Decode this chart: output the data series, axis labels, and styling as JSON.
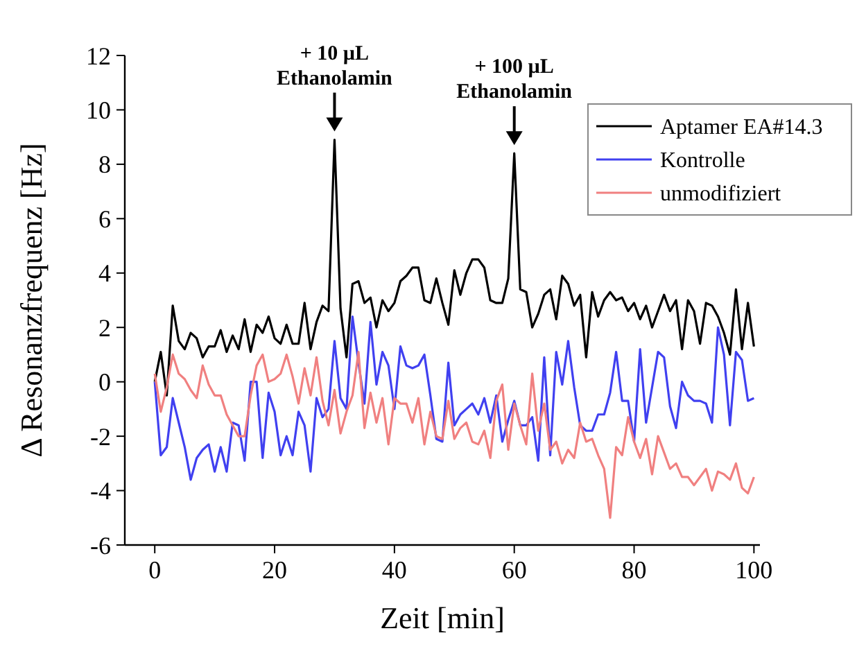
{
  "chart_data": {
    "type": "line",
    "xlabel": "Zeit [min]",
    "ylabel": "Δ Resonanzfrequenz [Hz]",
    "x": [
      0,
      1,
      2,
      3,
      4,
      5,
      6,
      7,
      8,
      9,
      10,
      11,
      12,
      13,
      14,
      15,
      16,
      17,
      18,
      19,
      20,
      21,
      22,
      23,
      24,
      25,
      26,
      27,
      28,
      29,
      30,
      31,
      32,
      33,
      34,
      35,
      36,
      37,
      38,
      39,
      40,
      41,
      42,
      43,
      44,
      45,
      46,
      47,
      48,
      49,
      50,
      51,
      52,
      53,
      54,
      55,
      56,
      57,
      58,
      59,
      60,
      61,
      62,
      63,
      64,
      65,
      66,
      67,
      68,
      69,
      70,
      71,
      72,
      73,
      74,
      75,
      76,
      77,
      78,
      79,
      80,
      81,
      82,
      83,
      84,
      85,
      86,
      87,
      88,
      89,
      90,
      91,
      92,
      93,
      94,
      95,
      96,
      97,
      98,
      99,
      100
    ],
    "series": [
      {
        "name": "Aptamer EA#14.3",
        "color": "#000000",
        "values": [
          0,
          1.1,
          -0.5,
          2.8,
          1.5,
          1.2,
          1.8,
          1.6,
          0.9,
          1.3,
          1.3,
          1.9,
          1.1,
          1.7,
          1.2,
          2.3,
          1.1,
          2.1,
          1.8,
          2.4,
          1.6,
          1.4,
          2.1,
          1.4,
          1.4,
          2.9,
          1.2,
          2.2,
          2.8,
          2.6,
          8.9,
          2.7,
          0.9,
          3.6,
          3.7,
          2.9,
          3.1,
          2.0,
          3.0,
          2.6,
          2.9,
          3.7,
          3.9,
          4.2,
          4.2,
          3.0,
          2.9,
          3.8,
          2.9,
          2.1,
          4.1,
          3.2,
          4.0,
          4.5,
          4.5,
          4.2,
          3.0,
          2.9,
          2.9,
          3.8,
          8.4,
          3.4,
          3.3,
          2.0,
          2.5,
          3.2,
          3.4,
          2.3,
          3.9,
          3.6,
          2.8,
          3.2,
          0.9,
          3.3,
          2.4,
          3.0,
          3.3,
          3.0,
          3.1,
          2.6,
          2.9,
          2.3,
          2.8,
          2.0,
          2.6,
          3.2,
          2.6,
          3.0,
          1.2,
          3.0,
          2.6,
          1.4,
          2.9,
          2.8,
          2.4,
          1.8,
          1.0,
          3.4,
          1.2,
          2.9,
          1.3
        ]
      },
      {
        "name": "Kontrolle",
        "color": "#4040f0",
        "values": [
          0,
          -2.7,
          -2.4,
          -0.6,
          -1.5,
          -2.4,
          -3.6,
          -2.8,
          -2.5,
          -2.3,
          -3.3,
          -2.4,
          -3.3,
          -1.5,
          -1.6,
          -2.9,
          0.0,
          0.0,
          -2.8,
          -0.4,
          -1.1,
          -2.7,
          -2.0,
          -2.7,
          -1.1,
          -1.6,
          -3.3,
          -0.6,
          -1.3,
          -1.0,
          1.5,
          -0.6,
          -1.0,
          2.4,
          0.7,
          -0.8,
          2.2,
          -0.1,
          1.1,
          0.6,
          -1.0,
          1.3,
          0.6,
          0.5,
          0.6,
          1.0,
          -0.5,
          -2.1,
          -2.2,
          0.7,
          -1.6,
          -1.2,
          -1.0,
          -0.8,
          -1.2,
          -0.6,
          -1.5,
          -0.5,
          -2.2,
          -1.4,
          -0.7,
          -1.6,
          -1.6,
          -1.3,
          -2.9,
          0.9,
          -2.7,
          1.1,
          -0.1,
          1.5,
          -0.2,
          -1.6,
          -1.8,
          -1.8,
          -1.2,
          -1.2,
          -0.4,
          1.1,
          -0.7,
          -0.7,
          -2.2,
          1.2,
          -1.5,
          -0.2,
          1.1,
          0.9,
          -0.9,
          -1.7,
          0.0,
          -0.5,
          -0.7,
          -0.7,
          -0.8,
          -1.5,
          2.0,
          1.0,
          -1.6,
          1.1,
          0.8,
          -0.7,
          -0.6
        ]
      },
      {
        "name": "unmodifiziert",
        "color": "#f08080",
        "values": [
          0.3,
          -1.1,
          -0.2,
          1.0,
          0.3,
          0.1,
          -0.3,
          -0.6,
          0.6,
          -0.1,
          -0.5,
          -0.5,
          -1.2,
          -1.6,
          -2.0,
          -2.0,
          -0.5,
          0.6,
          1.0,
          0.0,
          0.1,
          0.3,
          1.0,
          0.2,
          -0.8,
          0.5,
          -0.5,
          0.9,
          -0.7,
          -1.6,
          -0.3,
          -1.9,
          -1.1,
          -0.5,
          1.1,
          -1.7,
          -0.4,
          -1.5,
          -0.6,
          -2.3,
          -0.6,
          -0.8,
          -0.8,
          -1.5,
          -0.6,
          -2.3,
          -1.1,
          -2.0,
          -2.1,
          -0.7,
          -2.1,
          -1.7,
          -1.5,
          -2.2,
          -2.3,
          -1.8,
          -2.8,
          -0.7,
          -0.1,
          -2.5,
          -0.8,
          -1.6,
          -2.3,
          0.3,
          -1.8,
          -0.8,
          -2.5,
          -2.2,
          -3.0,
          -2.5,
          -2.8,
          -1.5,
          -2.2,
          -2.1,
          -2.7,
          -3.2,
          -5.0,
          -2.4,
          -2.7,
          -1.3,
          -2.2,
          -2.8,
          -2.1,
          -3.4,
          -2.0,
          -2.6,
          -3.2,
          -3.0,
          -3.5,
          -3.5,
          -3.8,
          -3.5,
          -3.2,
          -4.0,
          -3.3,
          -3.4,
          -3.6,
          -3.0,
          -3.9,
          -4.1,
          -3.5
        ]
      }
    ],
    "xlim": [
      -5,
      101
    ],
    "xticks": [
      0,
      20,
      40,
      60,
      80,
      100
    ],
    "ylim": [
      -6,
      12
    ],
    "yticks": [
      -6,
      -4,
      -2,
      0,
      2,
      4,
      6,
      8,
      10,
      12
    ],
    "annotations": [
      {
        "text": "+ 10 µL\nEthanolamin",
        "x": 30,
        "y": 8.9
      },
      {
        "text": "+ 100 µL\nEthanolamin",
        "x": 60,
        "y": 8.4
      }
    ],
    "legend": "top right",
    "grid": false,
    "marker": "none",
    "line_style": "solid"
  }
}
